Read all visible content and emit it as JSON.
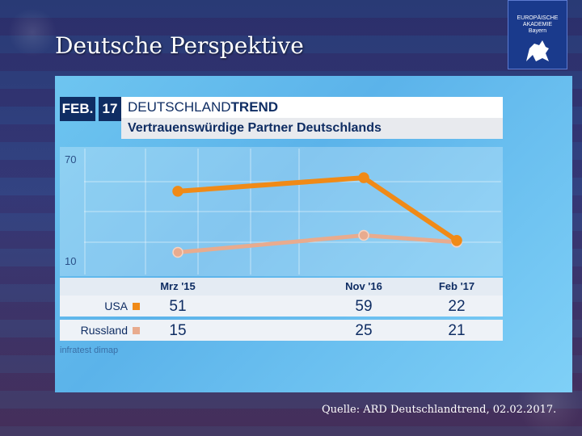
{
  "slide": {
    "title": "Deutsche Perspektive",
    "source": "Quelle: ARD Deutschlandtrend, 02.02.2017."
  },
  "logo": {
    "line1": "EUROPÄISCHE",
    "line2": "AKADEMIE",
    "line3": "Bayern"
  },
  "chart_header": {
    "month": "FEB.",
    "year": "17",
    "brand_a": "DEUTSCHLAND",
    "brand_b": "TREND",
    "subtitle": "Vertrauenswürdige Partner Deutschlands"
  },
  "chart_source": "infratest dimap",
  "colors": {
    "usa": "#f08a17",
    "russland": "#e8ab8e",
    "navy": "#0f2d63"
  },
  "chart_data": {
    "type": "line",
    "title": "Vertrauenswürdige Partner Deutschlands",
    "categories": [
      "Mrz '15",
      "Nov '16",
      "Feb '17"
    ],
    "y_ticks": [
      "70",
      "10"
    ],
    "ylim": [
      10,
      70
    ],
    "grid": true,
    "series": [
      {
        "name": "USA",
        "values": [
          51,
          59,
          22
        ],
        "labels": [
          "51",
          "59",
          "22"
        ]
      },
      {
        "name": "Russland",
        "values": [
          15,
          25,
          21
        ],
        "labels": [
          "15",
          "25",
          "21"
        ]
      }
    ]
  }
}
